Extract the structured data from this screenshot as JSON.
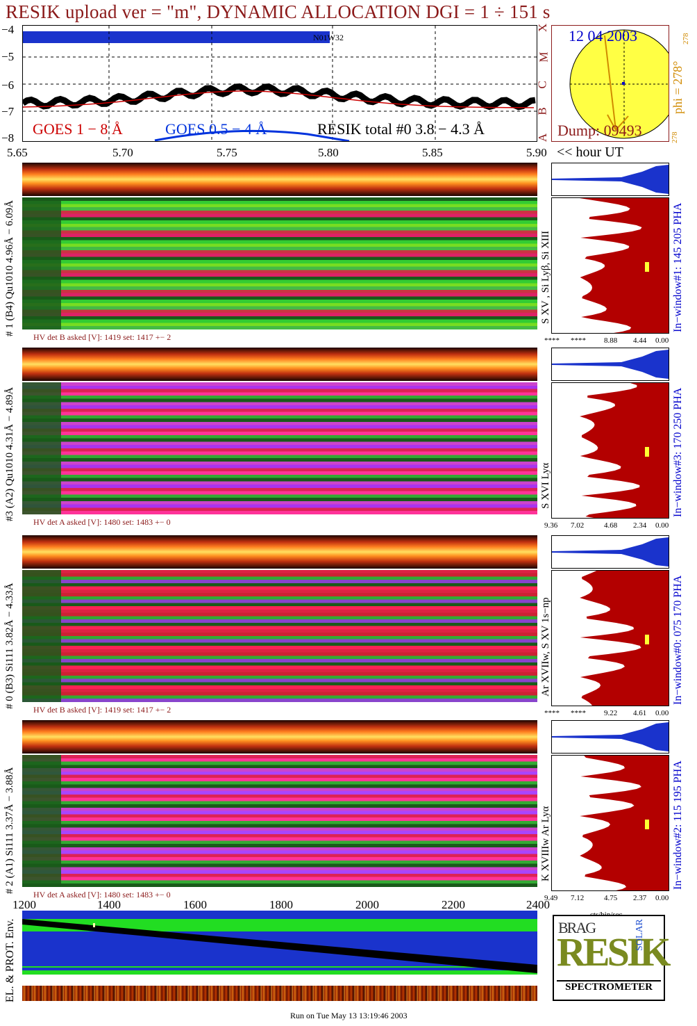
{
  "title": "RESIK upload ver = \"m\", DYNAMIC ALLOCATION  DGI =   1 ÷ 151 s",
  "top_plot": {
    "y_ticks": [
      "−4",
      "−5",
      "−6",
      "−7",
      "−8"
    ],
    "band_label": "N01W32",
    "x_ticks": [
      "5.65",
      "5.70",
      "5.75",
      "5.80",
      "5.85",
      "5.90"
    ],
    "x_unit": "<< hour UT",
    "legend": {
      "goes_1_8": "GOES 1 − 8 Å",
      "goes_05_4": "GOES 0.5 − 4 Å",
      "resik": "RESIK total #0  3.8 − 4.3 Å"
    },
    "colors": {
      "goes_1_8": "#cc0000",
      "goes_05_4": "#0033dd",
      "resik": "#000000"
    }
  },
  "sun_panel": {
    "date": "12 04 2003",
    "phi": "phi = 278°",
    "phi_sup": "278",
    "phi_bottom": "278",
    "dump": "Dump: 09493",
    "goes_class_letters": [
      "X",
      "M",
      "C",
      "B",
      "A"
    ]
  },
  "channels": [
    {
      "id": "ch1",
      "side_label": "# 1 (B4) Qu1010 4.96Å − 6.09Å",
      "hv_label": "HV det B asked [V]:  1419 set:  1417  +−   2",
      "pha_label": "In−window#1:  145 205 PHA",
      "line_label": "S XV , Si Lyβ, Si XIII",
      "hist_ticks": [
        "****",
        "****",
        "8.88",
        "4.44",
        "0.00"
      ]
    },
    {
      "id": "ch3",
      "side_label": "#3 (A2) Qu1010  4.31Å − 4.89Å",
      "hv_label": "HV det A asked [V]:  1480 set:  1483  +−   0",
      "pha_label": "In−window#3:  170 250 PHA",
      "line_label": "S XVI Lyα",
      "hist_ticks": [
        "9.36",
        "7.02",
        "4.68",
        "2.34",
        "0.00"
      ]
    },
    {
      "id": "ch0",
      "side_label": "# 0 (B3) Si111  3.82Å − 4.33Å",
      "hv_label": "HV det B asked [V]:  1419 set:  1417  +−   2",
      "pha_label": "In−window#0:  075 170 PHA",
      "line_label": "Ar XVIIw,  S XV 1s−np",
      "hist_ticks": [
        "****",
        "****",
        "9.22",
        "4.61",
        "0.00"
      ]
    },
    {
      "id": "ch2",
      "side_label": "# 2 (A1) Si111  3.37Å − 3.88Å",
      "hv_label": "HV det A asked [V]:  1480 set:  1483  +−   0",
      "pha_label": "In−window#2:  115 195 PHA",
      "line_label": "K XVIIIw  Ar Lyα",
      "hist_ticks": [
        "9.49",
        "7.12",
        "4.75",
        "2.37",
        "0.00"
      ]
    }
  ],
  "bottom_axis": {
    "ticks": [
      "1200",
      "1400",
      "1600",
      "1800",
      "2000",
      "2200",
      "2400"
    ],
    "hist_unit": "cts/bin/sec"
  },
  "env_panel": {
    "label": "EL. & PROT. Env."
  },
  "logo": {
    "letters_top": "BRAG",
    "main": "RESIK",
    "solar": "SOLAR",
    "bottom": "SPECTROMETER"
  },
  "footer": "Run on Tue May 13 13:19:46 2003"
}
